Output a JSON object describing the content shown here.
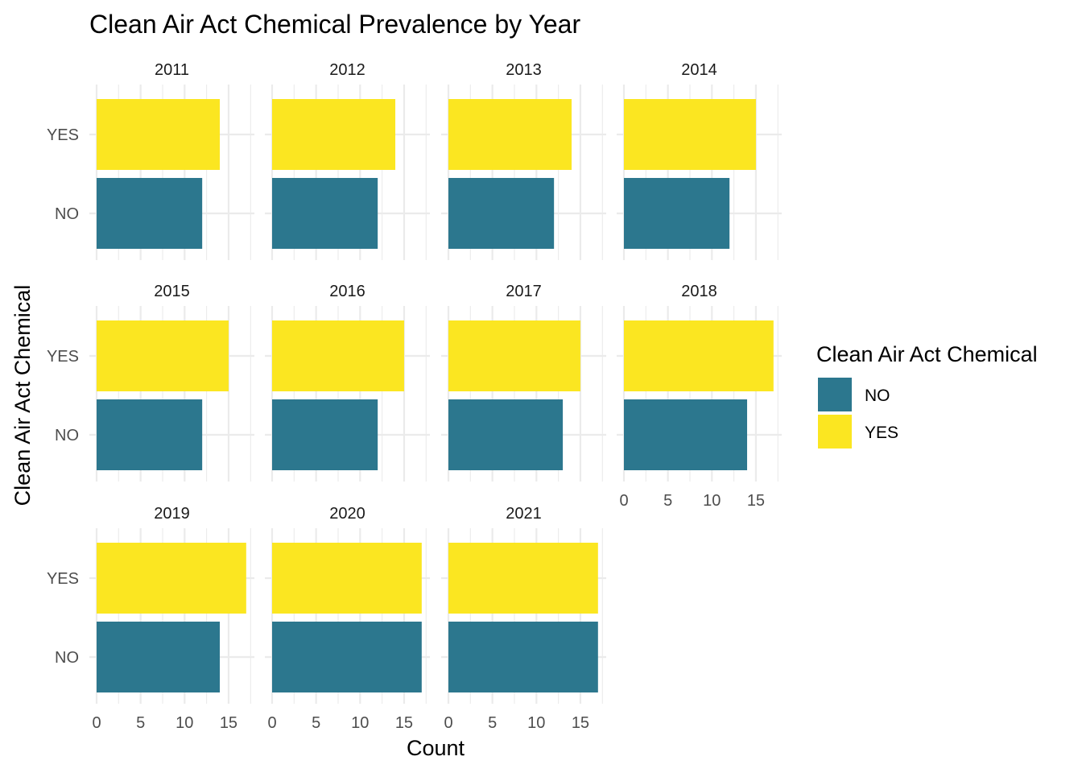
{
  "chart_data": {
    "type": "bar",
    "orientation": "horizontal",
    "faceted": true,
    "title": "Clean Air Act Chemical Prevalence by Year",
    "xlabel": "Count",
    "ylabel": "Clean Air Act Chemical",
    "xlim": [
      0,
      18
    ],
    "x_ticks": [
      0,
      5,
      10,
      15
    ],
    "categories": [
      "NO",
      "YES"
    ],
    "legend": {
      "title": "Clean Air Act Chemical",
      "position": "right",
      "entries": [
        {
          "label": "NO",
          "color": "#2c778e"
        },
        {
          "label": "YES",
          "color": "#fbe621"
        }
      ]
    },
    "grid": true,
    "panels": [
      {
        "year": "2011",
        "values": {
          "NO": 12,
          "YES": 14
        }
      },
      {
        "year": "2012",
        "values": {
          "NO": 12,
          "YES": 14
        }
      },
      {
        "year": "2013",
        "values": {
          "NO": 12,
          "YES": 14
        }
      },
      {
        "year": "2014",
        "values": {
          "NO": 12,
          "YES": 15
        }
      },
      {
        "year": "2015",
        "values": {
          "NO": 12,
          "YES": 15
        }
      },
      {
        "year": "2016",
        "values": {
          "NO": 12,
          "YES": 15
        }
      },
      {
        "year": "2017",
        "values": {
          "NO": 13,
          "YES": 15
        }
      },
      {
        "year": "2018",
        "values": {
          "NO": 14,
          "YES": 17
        }
      },
      {
        "year": "2019",
        "values": {
          "NO": 14,
          "YES": 17
        }
      },
      {
        "year": "2020",
        "values": {
          "NO": 17,
          "YES": 17
        }
      },
      {
        "year": "2021",
        "values": {
          "NO": 17,
          "YES": 17
        }
      }
    ]
  }
}
